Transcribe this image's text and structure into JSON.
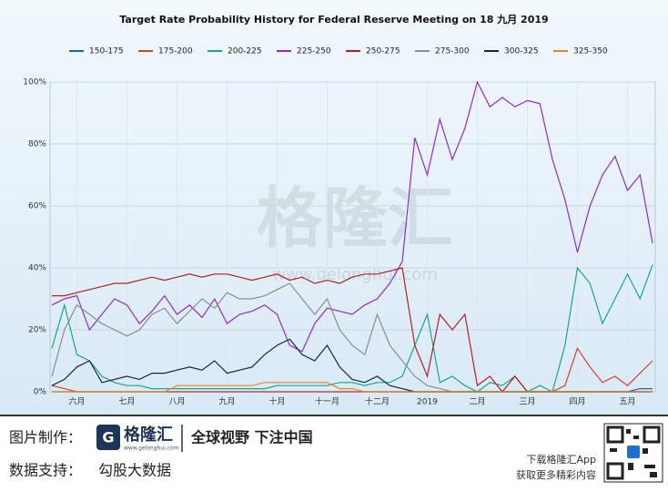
{
  "chart_data": {
    "type": "line",
    "title": "Target Rate Probability History for Federal Reserve Meeting on 18 九月 2019",
    "legend": "top",
    "grid": true,
    "watermark": "格隆汇",
    "watermark_url": "www.gelonghui.com",
    "categories": [
      null,
      null,
      "六月",
      null,
      null,
      null,
      "七月",
      null,
      null,
      null,
      "八月",
      null,
      null,
      null,
      "九月",
      null,
      null,
      null,
      "十月",
      null,
      null,
      null,
      "十一月",
      null,
      null,
      null,
      "十二月",
      null,
      null,
      null,
      "2019",
      null,
      null,
      null,
      "二月",
      null,
      null,
      null,
      "三月",
      null,
      null,
      null,
      "四月",
      null,
      null,
      null,
      "五月",
      null,
      null
    ],
    "ylim": [
      0,
      100
    ],
    "yticks": [
      {
        "value": 0,
        "label": "0%"
      },
      {
        "value": 20,
        "label": "20%"
      },
      {
        "value": 40,
        "label": "40%"
      },
      {
        "value": 60,
        "label": "60%"
      },
      {
        "value": 80,
        "label": "80%"
      },
      {
        "value": 100,
        "label": "100%"
      }
    ],
    "series": [
      {
        "name": "150-175",
        "color": "#1f5fbf",
        "values": [
          0,
          0,
          0,
          0,
          0,
          0,
          0,
          0,
          0,
          0,
          0,
          0,
          0,
          0,
          0,
          0,
          0,
          0,
          0,
          0,
          0,
          0,
          0,
          0,
          0,
          0,
          0,
          0,
          0,
          0,
          0,
          0,
          0,
          0,
          0,
          0,
          0,
          0,
          0,
          0,
          0,
          0,
          0,
          0,
          0,
          0,
          0,
          1,
          1
        ]
      },
      {
        "name": "175-200",
        "color": "#d2452a",
        "values": [
          2,
          1,
          0,
          0,
          0,
          0,
          0,
          0,
          0,
          0,
          0,
          0,
          0,
          0,
          0,
          0,
          0,
          0,
          0,
          0,
          0,
          0,
          0,
          0,
          0,
          0,
          0,
          0,
          0,
          0,
          0,
          0,
          0,
          0,
          0,
          0,
          0,
          0,
          0,
          0,
          0,
          2,
          14,
          8,
          3,
          5,
          2,
          6,
          10
        ]
      },
      {
        "name": "200-225",
        "color": "#1aa58a",
        "values": [
          14,
          28,
          12,
          10,
          5,
          3,
          2,
          2,
          1,
          1,
          1,
          1,
          1,
          1,
          1,
          1,
          1,
          1,
          2,
          2,
          2,
          2,
          2,
          3,
          3,
          2,
          3,
          3,
          5,
          15,
          25,
          3,
          5,
          2,
          0,
          3,
          2,
          5,
          0,
          2,
          0,
          15,
          40,
          35,
          22,
          30,
          38,
          30,
          41
        ]
      },
      {
        "name": "225-250",
        "color": "#8a2be2",
        "values": [
          28,
          30,
          31,
          20,
          25,
          30,
          28,
          22,
          26,
          31,
          25,
          28,
          24,
          30,
          22,
          25,
          26,
          28,
          25,
          15,
          13,
          22,
          27,
          26,
          25,
          28,
          30,
          35,
          42,
          82,
          70,
          88,
          75,
          85,
          100,
          92,
          95,
          92,
          94,
          93,
          75,
          62,
          45,
          60,
          70,
          76,
          65,
          70,
          48
        ]
      },
      {
        "name": "250-275",
        "color": "#b52020",
        "values": [
          31,
          31,
          32,
          33,
          34,
          35,
          35,
          36,
          37,
          36,
          37,
          38,
          37,
          38,
          38,
          37,
          36,
          37,
          38,
          36,
          37,
          35,
          36,
          35,
          37,
          38,
          38,
          39,
          40,
          15,
          5,
          25,
          20,
          25,
          2,
          5,
          0,
          5,
          0,
          0,
          0,
          0,
          0,
          0,
          0,
          0,
          0,
          0,
          0
        ]
      },
      {
        "name": "275-300",
        "color": "#8c8c8c",
        "values": [
          5,
          20,
          28,
          25,
          22,
          20,
          18,
          20,
          25,
          27,
          22,
          26,
          30,
          27,
          32,
          30,
          30,
          31,
          33,
          35,
          30,
          25,
          30,
          20,
          15,
          12,
          25,
          15,
          10,
          5,
          2,
          1,
          0,
          0,
          0,
          0,
          0,
          0,
          0,
          0,
          0,
          0,
          0,
          0,
          0,
          0,
          0,
          0,
          0
        ]
      },
      {
        "name": "300-325",
        "color": "#1a2440",
        "values": [
          2,
          4,
          8,
          10,
          3,
          4,
          5,
          4,
          6,
          6,
          7,
          8,
          7,
          10,
          6,
          7,
          8,
          12,
          15,
          17,
          12,
          10,
          15,
          8,
          4,
          3,
          5,
          2,
          1,
          0,
          0,
          0,
          0,
          0,
          0,
          0,
          0,
          0,
          0,
          0,
          0,
          0,
          0,
          0,
          0,
          0,
          0,
          0,
          0
        ]
      },
      {
        "name": "325-350",
        "color": "#e08a1e",
        "values": [
          0,
          0,
          0,
          0,
          0,
          0,
          0,
          0,
          0,
          0,
          2,
          2,
          2,
          2,
          2,
          2,
          2,
          3,
          3,
          3,
          3,
          3,
          3,
          1,
          1,
          0,
          0,
          0,
          0,
          0,
          0,
          0,
          0,
          0,
          0,
          0,
          0,
          0,
          0,
          0,
          0,
          0,
          0,
          0,
          0,
          0,
          0,
          0,
          0
        ]
      }
    ]
  },
  "footer": {
    "made_label": "图片制作：",
    "logo": "格隆汇",
    "logo_url": "www.gelonghui.com",
    "slogan": "全球视野 下注中国",
    "data_label": "数据支持：",
    "data_source": "勾股大数据",
    "app_line1": "下载格隆汇App",
    "app_line2": "获取更多精彩内容"
  }
}
